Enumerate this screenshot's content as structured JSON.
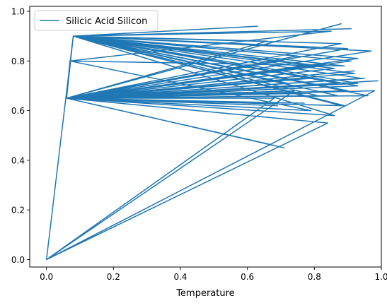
{
  "chart_data": {
    "type": "line",
    "title": "",
    "xlabel": "Temperature",
    "ylabel": "",
    "xlim": [
      -0.05,
      1.0
    ],
    "ylim": [
      -0.03,
      1.02
    ],
    "xticks": [
      0.0,
      0.2,
      0.4,
      0.6,
      0.8,
      1.0
    ],
    "xtick_labels": [
      "0.0",
      "0.2",
      "0.4",
      "0.6",
      "0.8",
      "1.0"
    ],
    "yticks": [
      0.0,
      0.2,
      0.4,
      0.6,
      0.8,
      1.0
    ],
    "ytick_labels": [
      "0.0",
      "0.2",
      "0.4",
      "0.6",
      "0.8",
      "1.0"
    ],
    "grid": false,
    "legend_position": "top-left",
    "colors": {
      "series": "#1f77b4",
      "axes": "#000000",
      "background": "#ffffff"
    },
    "series": [
      {
        "name": "Silicic Acid Silicon",
        "x": [
          0.0,
          0.08,
          0.91,
          0.08,
          0.06,
          0.88,
          0.06,
          0.07,
          0.85,
          0.08,
          0.63,
          0.08,
          0.94,
          0.06,
          0.92,
          0.06,
          0.79,
          0.07,
          0.89,
          0.08,
          0.86,
          0.06,
          0.68,
          0.06,
          0.87,
          0.08,
          0.97,
          0.06,
          0.84,
          0.0,
          0.68,
          0.06,
          0.91,
          0.08,
          0.72,
          0.06,
          0.89,
          0.08,
          0.66,
          0.06,
          0.93,
          0.08,
          0.82,
          0.06,
          0.71,
          0.06,
          0.88,
          0.08,
          0.75,
          0.06,
          0.95,
          0.06,
          0.81,
          0.08,
          0.9,
          0.06,
          0.77,
          0.06,
          0.98,
          0.0,
          0.74,
          0.06,
          0.92,
          0.08,
          0.7,
          0.06,
          0.86,
          0.08,
          0.93,
          0.06,
          0.69,
          0.06,
          0.87,
          0.08,
          0.96,
          0.06,
          0.83,
          0.06,
          0.9,
          0.08,
          0.79,
          0.06,
          0.88,
          0.08,
          0.93,
          0.06,
          0.74,
          0.06,
          0.99,
          0.06,
          0.78
        ],
        "y": [
          0.0,
          0.9,
          0.93,
          0.9,
          0.65,
          0.95,
          0.65,
          0.8,
          0.92,
          0.9,
          0.94,
          0.9,
          0.73,
          0.65,
          0.76,
          0.65,
          0.6,
          0.8,
          0.78,
          0.9,
          0.77,
          0.65,
          0.46,
          0.65,
          0.66,
          0.9,
          0.84,
          0.65,
          0.55,
          0.0,
          0.65,
          0.65,
          0.8,
          0.9,
          0.71,
          0.65,
          0.62,
          0.9,
          0.88,
          0.65,
          0.7,
          0.9,
          0.78,
          0.65,
          0.45,
          0.65,
          0.87,
          0.9,
          0.82,
          0.65,
          0.73,
          0.65,
          0.66,
          0.9,
          0.85,
          0.65,
          0.63,
          0.65,
          0.68,
          0.0,
          0.68,
          0.65,
          0.75,
          0.9,
          0.8,
          0.65,
          0.58,
          0.9,
          0.81,
          0.65,
          0.62,
          0.65,
          0.71,
          0.9,
          0.66,
          0.65,
          0.79,
          0.65,
          0.68,
          0.9,
          0.73,
          0.65,
          0.62,
          0.9,
          0.71,
          0.65,
          0.69,
          0.65,
          0.72,
          0.65,
          0.67
        ]
      }
    ]
  }
}
